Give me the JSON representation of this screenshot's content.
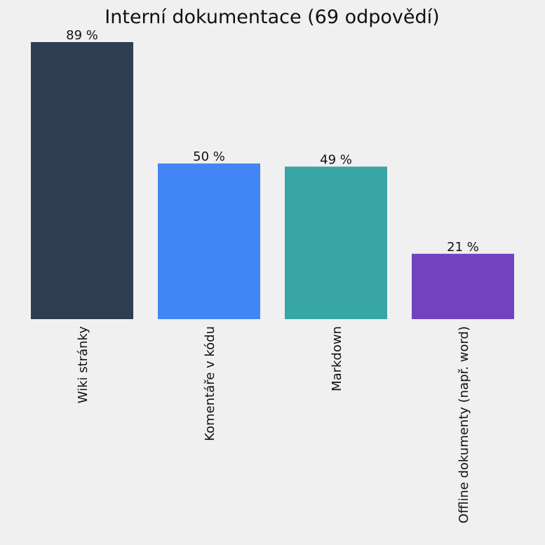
{
  "chart_data": {
    "type": "bar",
    "title": "Interní dokumentace (69 odpovědí)",
    "categories": [
      "Wiki stránky",
      "Komentáře v kódu",
      "Markdown",
      "Offline dokumenty (např. word)"
    ],
    "values": [
      89,
      50,
      49,
      21
    ],
    "value_labels": [
      "89 %",
      "50 %",
      "49 %",
      "21 %"
    ],
    "colors": [
      "#2e3e50",
      "#4285f4",
      "#38a6a5",
      "#7342bf"
    ],
    "ylim": [
      0,
      89
    ],
    "grid": false,
    "xlabel": "",
    "ylabel": ""
  }
}
